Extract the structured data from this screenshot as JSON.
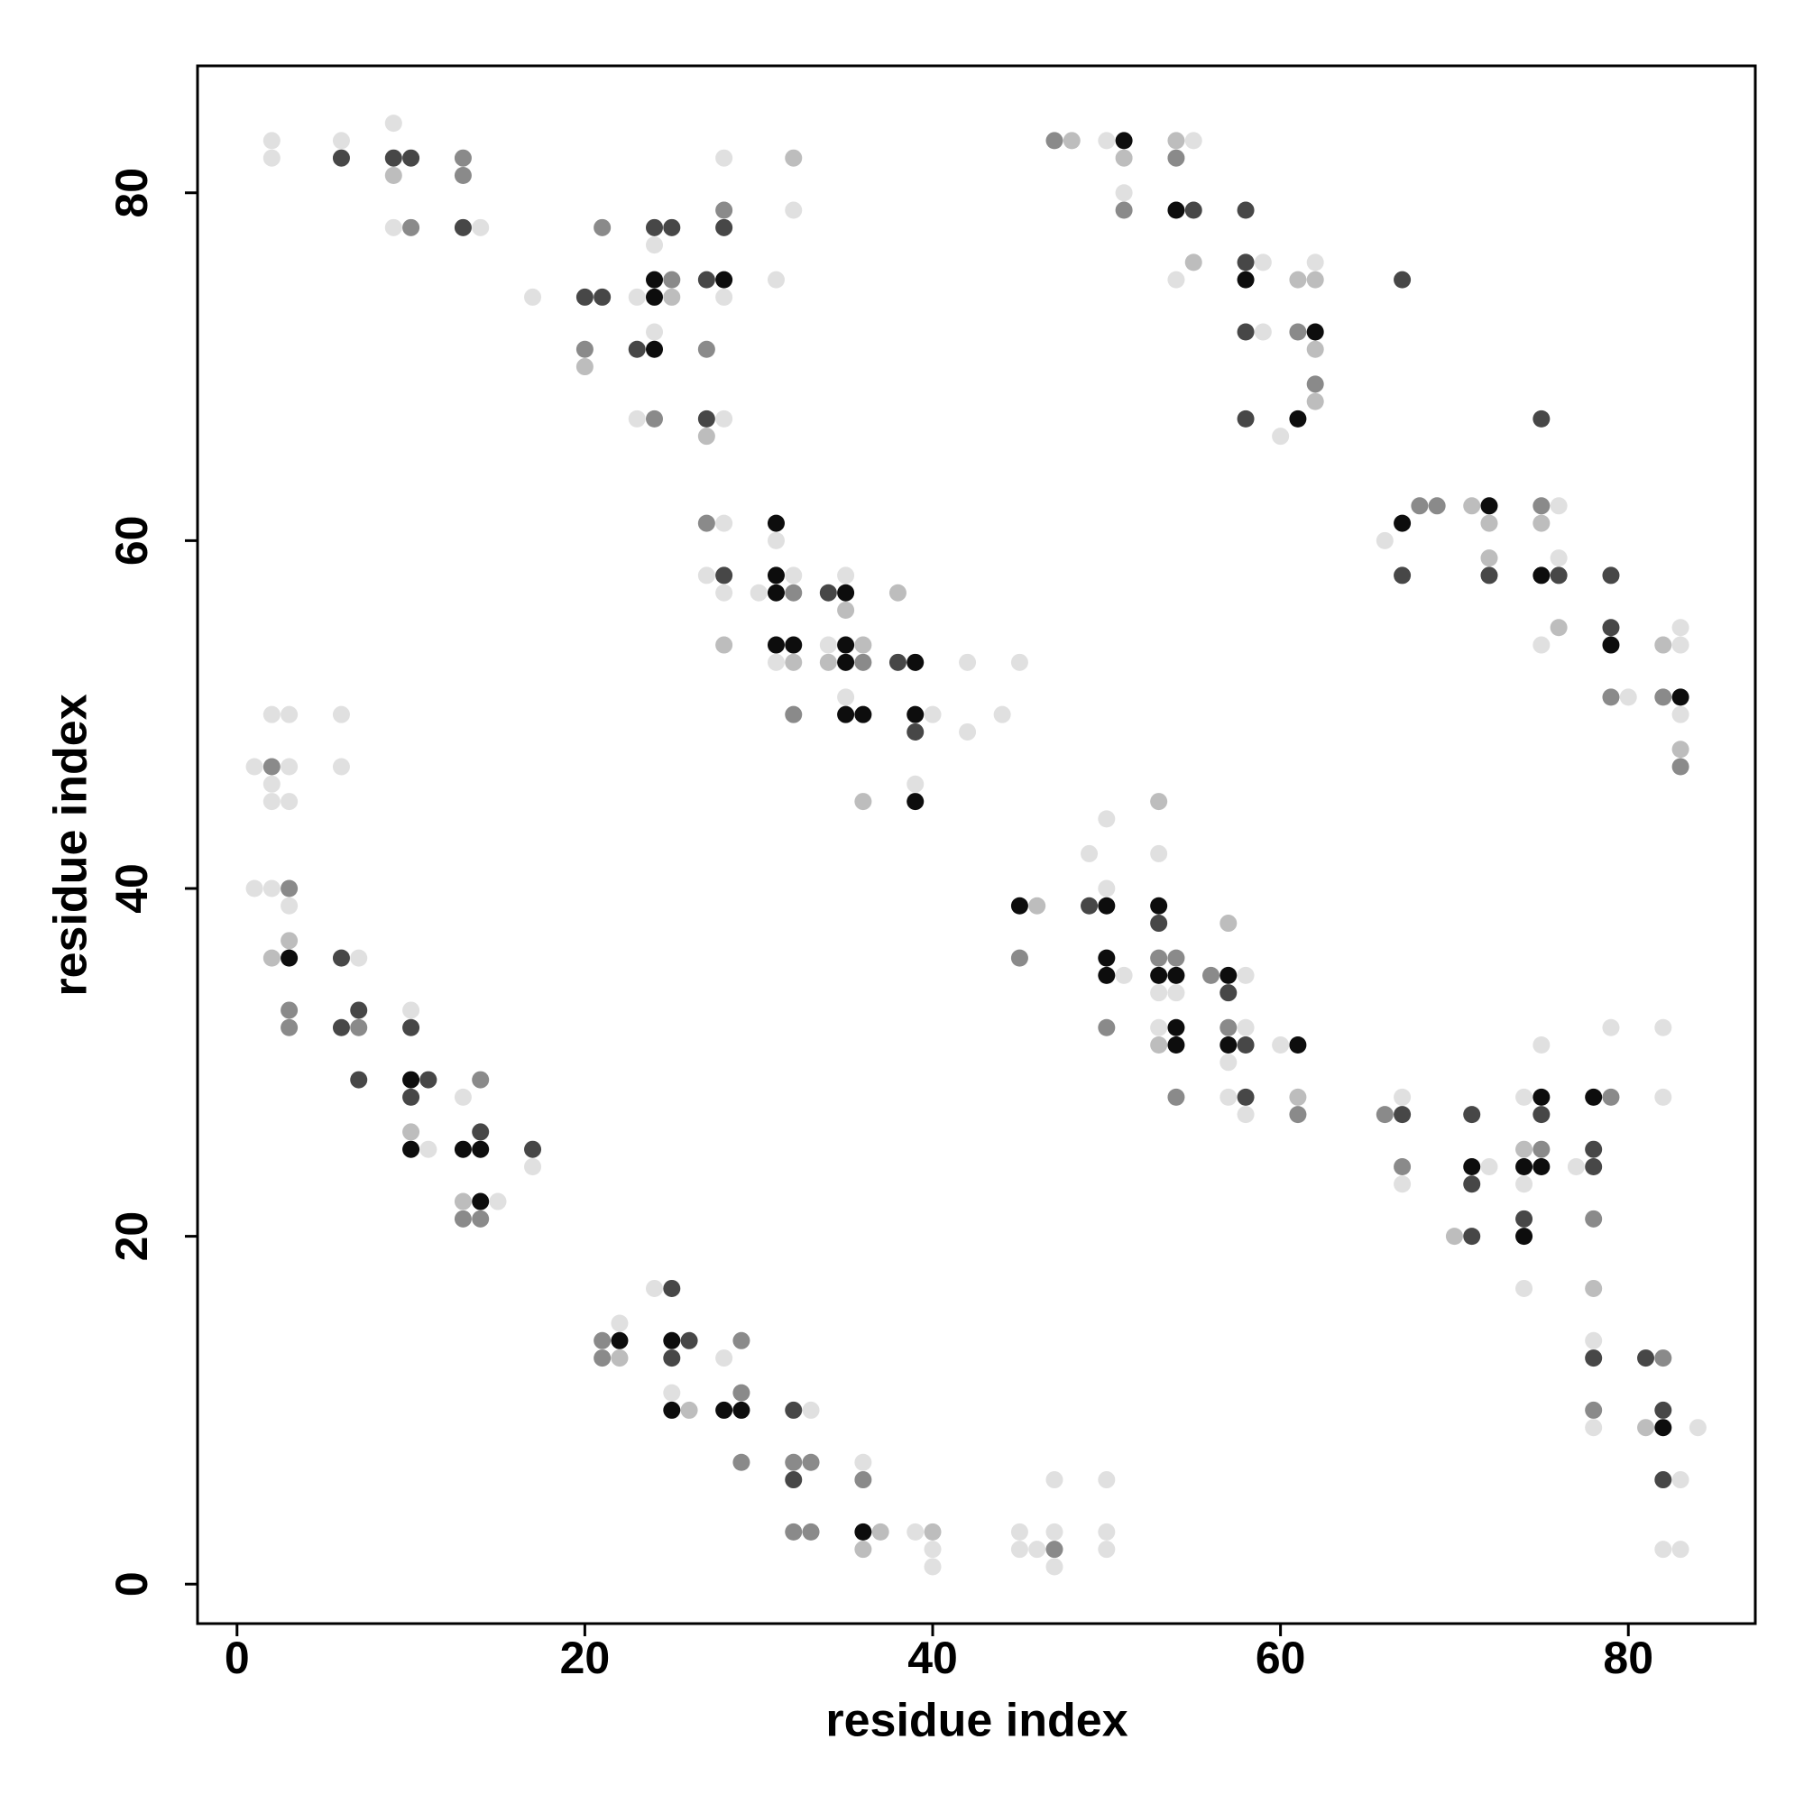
{
  "chart_data": {
    "type": "scatter",
    "xlabel": "residue index",
    "ylabel": "residue index",
    "xlim": [
      -2.27,
      87.3
    ],
    "ylim": [
      -2.27,
      87.3
    ],
    "xticks": [
      0,
      20,
      40,
      60,
      80
    ],
    "yticks": [
      0,
      20,
      40,
      60,
      80
    ],
    "grid": false,
    "series": [
      {
        "color": "#0d0d0d",
        "x": [
          51,
          54,
          58,
          61,
          62,
          24,
          24,
          24,
          28,
          31,
          31,
          31,
          31,
          32,
          35,
          35,
          35,
          35,
          36,
          39,
          39,
          39,
          3,
          10,
          10,
          13,
          14,
          14,
          22,
          25,
          25,
          28,
          29,
          36,
          67,
          72,
          75,
          79,
          83,
          45,
          50,
          50,
          50,
          53,
          53,
          54,
          54,
          54,
          57,
          57,
          61,
          71,
          75,
          74,
          75,
          74,
          78,
          82
        ],
        "y": [
          83,
          79,
          75,
          67,
          72,
          71,
          74,
          75,
          75,
          61,
          58,
          57,
          54,
          54,
          57,
          54,
          53,
          50,
          50,
          53,
          50,
          45,
          36,
          29,
          25,
          25,
          25,
          22,
          14,
          14,
          10,
          10,
          10,
          3,
          61,
          62,
          58,
          54,
          51,
          39,
          39,
          36,
          35,
          39,
          35,
          35,
          32,
          31,
          35,
          31,
          31,
          24,
          28,
          24,
          24,
          20,
          28,
          9
        ]
      },
      {
        "color": "#474747",
        "x": [
          6,
          9,
          10,
          13,
          20,
          21,
          23,
          24,
          25,
          27,
          28,
          27,
          28,
          34,
          38,
          39,
          6,
          6,
          7,
          7,
          10,
          11,
          10,
          14,
          17,
          25,
          26,
          25,
          32,
          32,
          55,
          58,
          58,
          58,
          58,
          67,
          67,
          72,
          75,
          76,
          79,
          79,
          49,
          53,
          57,
          58,
          58,
          67,
          71,
          71,
          71,
          75,
          74,
          78,
          78,
          78,
          81,
          82,
          82
        ],
        "y": [
          82,
          82,
          82,
          78,
          74,
          74,
          71,
          78,
          78,
          75,
          78,
          67,
          58,
          57,
          53,
          49,
          36,
          32,
          33,
          29,
          32,
          29,
          28,
          26,
          25,
          17,
          14,
          13,
          10,
          6,
          79,
          79,
          76,
          72,
          67,
          75,
          58,
          58,
          67,
          58,
          58,
          55,
          39,
          38,
          34,
          31,
          28,
          27,
          20,
          27,
          23,
          27,
          21,
          25,
          24,
          13,
          13,
          10,
          6
        ]
      },
      {
        "color": "#8a8a8a",
        "x": [
          13,
          13,
          10,
          21,
          20,
          24,
          25,
          28,
          27,
          27,
          32,
          32,
          36,
          2,
          3,
          3,
          3,
          7,
          14,
          13,
          14,
          21,
          21,
          29,
          29,
          29,
          32,
          33,
          32,
          33,
          36,
          47,
          47,
          51,
          54,
          61,
          62,
          68,
          69,
          75,
          79,
          82,
          83,
          45,
          50,
          53,
          54,
          56,
          57,
          54,
          61,
          66,
          67,
          75,
          79,
          78,
          78,
          82
        ],
        "y": [
          82,
          81,
          78,
          78,
          71,
          67,
          75,
          79,
          71,
          61,
          57,
          50,
          53,
          47,
          40,
          33,
          32,
          32,
          29,
          21,
          21,
          14,
          13,
          14,
          11,
          7,
          7,
          7,
          3,
          3,
          6,
          2,
          83,
          79,
          82,
          72,
          69,
          62,
          62,
          62,
          51,
          51,
          47,
          36,
          32,
          36,
          36,
          35,
          32,
          28,
          27,
          27,
          24,
          25,
          28,
          21,
          10,
          13
        ]
      },
      {
        "color": "#bdbdbd",
        "x": [
          9,
          20,
          25,
          27,
          28,
          32,
          36,
          34,
          35,
          38,
          36,
          3,
          2,
          10,
          13,
          22,
          26,
          37,
          36,
          40,
          48,
          51,
          54,
          55,
          61,
          62,
          62,
          62,
          71,
          72,
          72,
          75,
          76,
          82,
          83,
          46,
          53,
          53,
          57,
          61,
          70,
          74,
          78,
          81,
          32
        ],
        "y": [
          81,
          70,
          74,
          66,
          54,
          53,
          54,
          53,
          56,
          57,
          45,
          37,
          36,
          26,
          22,
          13,
          10,
          3,
          2,
          3,
          83,
          82,
          83,
          76,
          75,
          75,
          71,
          68,
          62,
          61,
          59,
          61,
          55,
          54,
          48,
          39,
          45,
          31,
          38,
          28,
          20,
          25,
          17,
          9,
          82
        ]
      },
      {
        "color": "#e0e0e0",
        "x": [
          2,
          2,
          6,
          9,
          9,
          14,
          17,
          23,
          23,
          24,
          24,
          28,
          28,
          28,
          31,
          32,
          28,
          27,
          28,
          31,
          32,
          30,
          31,
          35,
          34,
          35,
          40,
          39,
          42,
          42,
          44,
          45,
          2,
          3,
          6,
          1,
          3,
          6,
          2,
          2,
          3,
          1,
          2,
          3,
          7,
          10,
          11,
          13,
          17,
          15,
          24,
          22,
          25,
          28,
          33,
          36,
          39,
          40,
          40,
          45,
          45,
          46,
          47,
          47,
          47,
          50,
          50,
          50,
          50,
          51,
          55,
          54,
          59,
          59,
          60,
          62,
          66,
          76,
          76,
          75,
          80,
          83,
          83,
          83,
          49,
          50,
          50,
          51,
          53,
          53,
          54,
          53,
          58,
          58,
          57,
          57,
          58,
          60,
          67,
          67,
          72,
          74,
          75,
          74,
          74,
          77,
          79,
          82,
          82,
          78,
          78,
          84,
          83,
          82,
          83
        ],
        "y": [
          83,
          82,
          83,
          84,
          78,
          78,
          74,
          74,
          67,
          77,
          72,
          82,
          74,
          67,
          75,
          79,
          61,
          58,
          57,
          60,
          58,
          57,
          53,
          58,
          54,
          51,
          50,
          46,
          53,
          49,
          50,
          53,
          50,
          50,
          50,
          47,
          47,
          47,
          46,
          45,
          45,
          40,
          40,
          39,
          36,
          33,
          25,
          28,
          24,
          22,
          17,
          15,
          11,
          13,
          10,
          7,
          3,
          2,
          1,
          3,
          2,
          2,
          3,
          1,
          6,
          6,
          3,
          2,
          83,
          80,
          83,
          75,
          76,
          72,
          66,
          76,
          60,
          62,
          59,
          54,
          51,
          54,
          55,
          50,
          42,
          44,
          40,
          35,
          42,
          34,
          34,
          32,
          35,
          32,
          30,
          28,
          27,
          31,
          28,
          23,
          24,
          28,
          31,
          23,
          17,
          24,
          32,
          32,
          28,
          14,
          9,
          9,
          6,
          2,
          2
        ]
      }
    ]
  }
}
